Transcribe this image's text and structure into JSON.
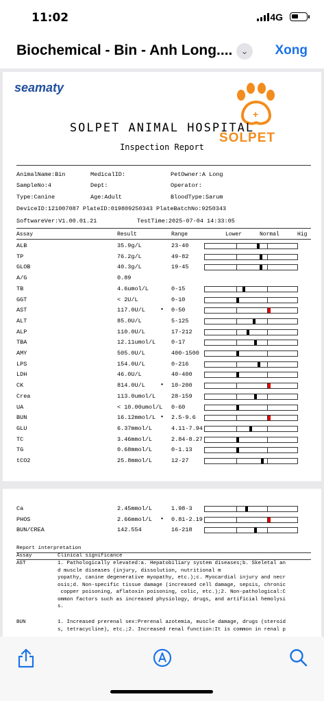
{
  "status": {
    "time": "11:02",
    "network": "4G"
  },
  "nav": {
    "title": "Biochemical - Bin - Anh Long....",
    "done_label": "Xong"
  },
  "report": {
    "brand": "seamaty",
    "logo_text": "SOLPET",
    "hospital": "SOLPET ANIMAL HOSPITAL",
    "subtitle": "Inspection Report",
    "info": {
      "animal_name": "AnimalName:Bin",
      "medical_id": "MedicalID:",
      "pet_owner": "PetOwner:A Long",
      "sample_no": "SampleNo:4",
      "dept": "Dept:",
      "operator": "Operator:",
      "type": "Type:Canine",
      "age": "Age:Adult",
      "blood_type": "BloodType:Sarum",
      "device": "DeviceID:121007087 PlateID:019809250343 PlateBatchNo:9250343",
      "software": "SoftwareVer:V1.00.01.21",
      "test_time": "TestTime:2025-07-04 14:33:05"
    },
    "headers": {
      "assay": "Assay",
      "result": "Result",
      "range": "Range",
      "lower": "Lower",
      "normal": "Normal",
      "high": "Hig"
    },
    "rows_page1": [
      {
        "assay": "ALB",
        "result": "35.9g/L",
        "flag": "",
        "range": "23-40",
        "level": 0.56,
        "high": false
      },
      {
        "assay": "TP",
        "result": "76.2g/L",
        "flag": "",
        "range": "49-82",
        "level": 0.59,
        "high": false
      },
      {
        "assay": "GLOB",
        "result": "40.3g/L",
        "flag": "",
        "range": "19-45",
        "level": 0.59,
        "high": false
      },
      {
        "assay": "A/G",
        "result": "0.89",
        "flag": "",
        "range": "",
        "level": null,
        "high": false
      },
      {
        "assay": "TB",
        "result": "4.6umol/L",
        "flag": "",
        "range": "0-15",
        "level": 0.41,
        "high": false
      },
      {
        "assay": "GGT",
        "result": "< 2U/L",
        "flag": "",
        "range": "0-10",
        "level": 0.34,
        "high": false
      },
      {
        "assay": "AST",
        "result": "117.0U/L",
        "flag": "•",
        "range": "0-50",
        "level": 0.68,
        "high": true
      },
      {
        "assay": "ALT",
        "result": "85.0U/L",
        "flag": "",
        "range": "5-125",
        "level": 0.52,
        "high": false
      },
      {
        "assay": "ALP",
        "result": "110.0U/L",
        "flag": "",
        "range": "17-212",
        "level": 0.45,
        "high": false
      },
      {
        "assay": "TBA",
        "result": "12.11umol/L",
        "flag": "",
        "range": "0-17",
        "level": 0.53,
        "high": false
      },
      {
        "assay": "AMY",
        "result": "505.0U/L",
        "flag": "",
        "range": "400-1500",
        "level": 0.34,
        "high": false
      },
      {
        "assay": "LPS",
        "result": "154.0U/L",
        "flag": "",
        "range": "0-216",
        "level": 0.57,
        "high": false
      },
      {
        "assay": "LDH",
        "result": "46.0U/L",
        "flag": "",
        "range": "40-400",
        "level": 0.34,
        "high": false
      },
      {
        "assay": "CK",
        "result": "814.0U/L",
        "flag": "•",
        "range": "10-200",
        "level": 0.68,
        "high": true
      },
      {
        "assay": "Crea",
        "result": "113.0umol/L",
        "flag": "",
        "range": "28-159",
        "level": 0.53,
        "high": false
      },
      {
        "assay": "UA",
        "result": "< 10.00umol/L",
        "flag": "",
        "range": "0-60",
        "level": 0.34,
        "high": false
      },
      {
        "assay": "BUN",
        "result": "16.12mmol/L",
        "flag": "•",
        "range": "2.5-9.6",
        "level": 0.68,
        "high": true
      },
      {
        "assay": "GLU",
        "result": "6.37mmol/L",
        "flag": "",
        "range": "4.11-7.94",
        "level": 0.48,
        "high": false
      },
      {
        "assay": "TC",
        "result": "3.46mmol/L",
        "flag": "",
        "range": "2.84-8.27",
        "level": 0.34,
        "high": false
      },
      {
        "assay": "TG",
        "result": "0.68mmol/L",
        "flag": "",
        "range": "0-1.13",
        "level": 0.34,
        "high": false
      },
      {
        "assay": "tCO2",
        "result": "25.8mmol/L",
        "flag": "",
        "range": "12-27",
        "level": 0.61,
        "high": false
      }
    ],
    "rows_page2": [
      {
        "assay": "Ca",
        "result": "2.45mmol/L",
        "flag": "",
        "range": "1.98-3",
        "level": 0.44,
        "high": false
      },
      {
        "assay": "PHOS",
        "result": "2.66mmol/L",
        "flag": "•",
        "range": "0.81-2.19",
        "level": 0.68,
        "high": true
      },
      {
        "assay": "BUN/CREA",
        "result": "142.554",
        "flag": "",
        "range": "16-218",
        "level": 0.53,
        "high": false
      }
    ],
    "interpretation": {
      "heading": "Report interpretation",
      "col_assay": "Assay",
      "col_sig": "Clinical significance",
      "ast_label": "AST",
      "ast_text_1": "1. Pathologically elevated:a. Hepatobiliary system diseases;b. Skeletal an",
      "ast_text_2": "d muscle diseases (injury, dissolution, nutritional m",
      "ast_text_3": "yopathy, canine degenerative myopathy, etc.);c. Myocardial injury and necr",
      "ast_text_4": "osis;d. Non-specific tissue damage (increased cell damage, sepsis, chronic",
      "ast_text_5": " copper poisoning, aflatoxin poisoning, colic, etc.);2. Non-pathological:C",
      "ast_text_6": "ommon factors such as increased physiology, drugs, and artificial hemolysi",
      "ast_text_7": "s.",
      "bun_label": "BUN",
      "bun_text_1": "1. Increased prerenal sex:Prerenal azotemia, muscle damage, drugs (steroid",
      "bun_text_2": "s, tetracycline), etc.;2. Increased renal function:It is common in renal p"
    }
  },
  "toolbar": {
    "share": "share-icon",
    "markup": "markup-icon",
    "search": "search-icon"
  },
  "colors": {
    "accent": "#1a73e8",
    "brand_orange": "#f28c1c",
    "brand_blue": "#1f4f9c",
    "flag_red": "#e00000"
  }
}
